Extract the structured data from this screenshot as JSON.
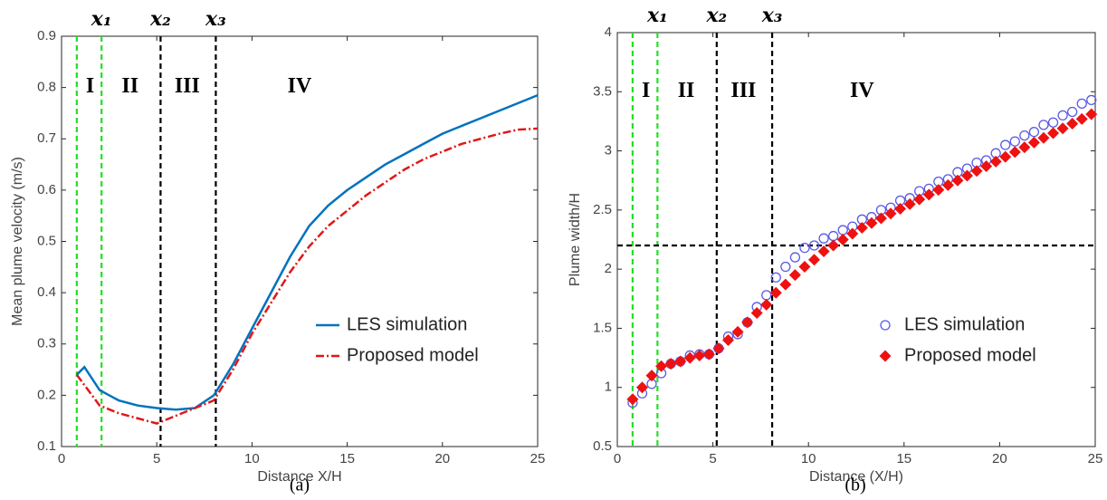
{
  "chart_data": [
    {
      "type": "line",
      "caption": "(a)",
      "xlabel": "Distance X/H",
      "ylabel": "Mean plume velocity (m/s)",
      "xlim": [
        0,
        25
      ],
      "xticks": [
        0,
        5,
        10,
        15,
        20,
        25
      ],
      "ylim": [
        0.1,
        0.9
      ],
      "yticks": [
        0.1,
        0.2,
        0.3,
        0.4,
        0.5,
        0.6,
        0.7,
        0.8,
        0.9
      ],
      "legend": "lower right",
      "vlines": [
        {
          "x": 0.8,
          "color": "#22e022"
        },
        {
          "x": 2.1,
          "color": "#22e022",
          "label": "x₁"
        },
        {
          "x": 5.2,
          "color": "#000000",
          "label": "x₂"
        },
        {
          "x": 8.1,
          "color": "#000000",
          "label": "x₃"
        }
      ],
      "annotations": [
        {
          "text": "I",
          "x": 1.5,
          "y": 0.8
        },
        {
          "text": "II",
          "x": 3.6,
          "y": 0.8
        },
        {
          "text": "III",
          "x": 6.6,
          "y": 0.8
        },
        {
          "text": "IV",
          "x": 12.5,
          "y": 0.8
        }
      ],
      "x": [
        0.8,
        1.2,
        2,
        3,
        4,
        5,
        6,
        7,
        8,
        9,
        10,
        11,
        12,
        13,
        14,
        15,
        16,
        17,
        18,
        19,
        20,
        21,
        22,
        23,
        24,
        25
      ],
      "series": [
        {
          "name": "LES simulation",
          "color": "#0072bd",
          "style": "solid",
          "values": [
            0.24,
            0.255,
            0.21,
            0.19,
            0.18,
            0.175,
            0.172,
            0.175,
            0.2,
            0.26,
            0.33,
            0.4,
            0.47,
            0.53,
            0.57,
            0.6,
            0.625,
            0.65,
            0.67,
            0.69,
            0.71,
            0.725,
            0.74,
            0.755,
            0.77,
            0.785
          ]
        },
        {
          "name": "Proposed model",
          "color": "#e01818",
          "style": "dashdot",
          "values": [
            0.24,
            0.22,
            0.18,
            0.165,
            0.155,
            0.145,
            0.16,
            0.175,
            0.19,
            0.25,
            0.32,
            0.38,
            0.44,
            0.49,
            0.53,
            0.56,
            0.59,
            0.615,
            0.64,
            0.66,
            0.675,
            0.69,
            0.7,
            0.71,
            0.718,
            0.72
          ]
        }
      ]
    },
    {
      "type": "scatter",
      "caption": "(b)",
      "xlabel": "Distance (X/H)",
      "ylabel": "Plume width/H",
      "xlim": [
        0,
        25
      ],
      "xticks": [
        0,
        5,
        10,
        15,
        20,
        25
      ],
      "ylim": [
        0.5,
        4
      ],
      "yticks": [
        0.5,
        1,
        1.5,
        2,
        2.5,
        3,
        3.5,
        4
      ],
      "legend": "lower right",
      "vlines": [
        {
          "x": 0.8,
          "color": "#22e022"
        },
        {
          "x": 2.1,
          "color": "#22e022",
          "label": "x₁"
        },
        {
          "x": 5.2,
          "color": "#000000",
          "label": "x₂"
        },
        {
          "x": 8.1,
          "color": "#000000",
          "label": "x₃"
        }
      ],
      "hlines": [
        {
          "y": 2.2,
          "color": "#000000"
        }
      ],
      "annotations": [
        {
          "text": "I",
          "x": 1.5,
          "y": 3.5
        },
        {
          "text": "II",
          "x": 3.6,
          "y": 3.5
        },
        {
          "text": "III",
          "x": 6.6,
          "y": 3.5
        },
        {
          "text": "IV",
          "x": 12.8,
          "y": 3.5
        }
      ],
      "x": [
        0.8,
        1.3,
        1.8,
        2.3,
        2.8,
        3.3,
        3.8,
        4.3,
        4.8,
        5.3,
        5.8,
        6.3,
        6.8,
        7.3,
        7.8,
        8.3,
        8.8,
        9.3,
        9.8,
        10.3,
        10.8,
        11.3,
        11.8,
        12.3,
        12.8,
        13.3,
        13.8,
        14.3,
        14.8,
        15.3,
        15.8,
        16.3,
        16.8,
        17.3,
        17.8,
        18.3,
        18.8,
        19.3,
        19.8,
        20.3,
        20.8,
        21.3,
        21.8,
        22.3,
        22.8,
        23.3,
        23.8,
        24.3,
        24.8
      ],
      "series": [
        {
          "name": "LES simulation",
          "color": "#5a5ae6",
          "marker": "circle",
          "values": [
            0.87,
            0.95,
            1.03,
            1.12,
            1.2,
            1.22,
            1.27,
            1.28,
            1.28,
            1.33,
            1.43,
            1.45,
            1.55,
            1.68,
            1.78,
            1.93,
            2.02,
            2.1,
            2.18,
            2.2,
            2.26,
            2.28,
            2.33,
            2.36,
            2.42,
            2.44,
            2.5,
            2.52,
            2.58,
            2.6,
            2.66,
            2.68,
            2.74,
            2.76,
            2.82,
            2.85,
            2.9,
            2.92,
            2.98,
            3.05,
            3.08,
            3.13,
            3.16,
            3.22,
            3.24,
            3.3,
            3.33,
            3.4,
            3.43
          ]
        },
        {
          "name": "Proposed model",
          "color": "#ee1111",
          "marker": "diamond",
          "values": [
            0.9,
            1.0,
            1.1,
            1.18,
            1.2,
            1.22,
            1.25,
            1.27,
            1.28,
            1.33,
            1.4,
            1.47,
            1.55,
            1.63,
            1.7,
            1.8,
            1.87,
            1.95,
            2.02,
            2.08,
            2.15,
            2.2,
            2.25,
            2.3,
            2.35,
            2.39,
            2.43,
            2.47,
            2.51,
            2.55,
            2.59,
            2.63,
            2.67,
            2.71,
            2.75,
            2.79,
            2.83,
            2.87,
            2.91,
            2.95,
            2.99,
            3.03,
            3.07,
            3.11,
            3.15,
            3.19,
            3.23,
            3.27,
            3.31
          ]
        }
      ]
    }
  ]
}
